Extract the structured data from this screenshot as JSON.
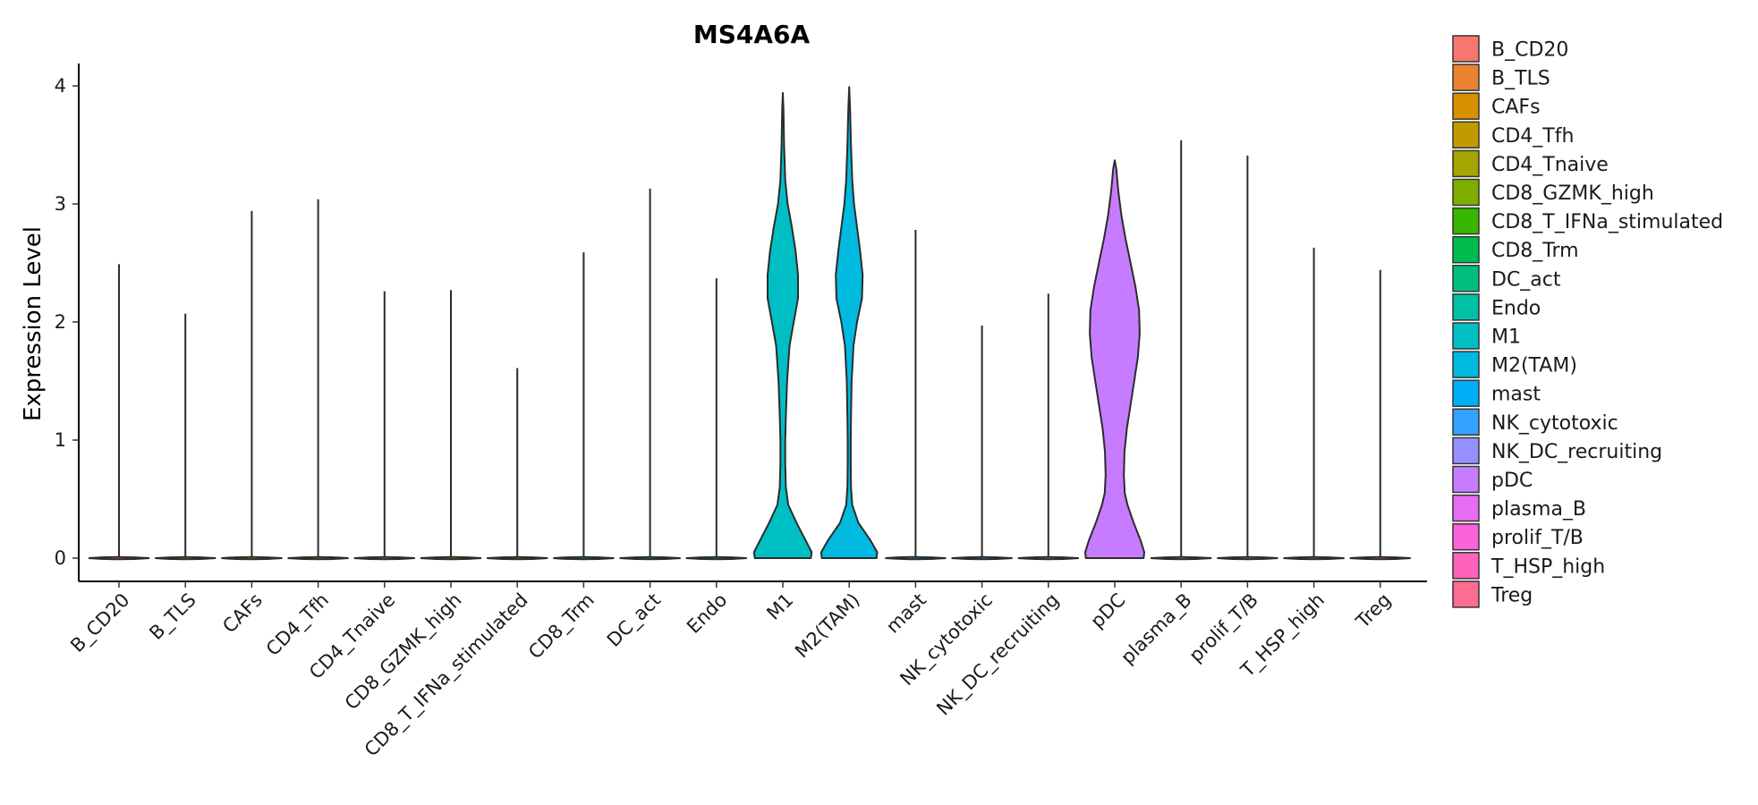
{
  "chart_data": {
    "type": "violin",
    "title": "MS4A6A",
    "xlabel": "",
    "ylabel": "Expression Level",
    "ylim": [
      -0.2,
      4.2
    ],
    "yticks": [
      0,
      1,
      2,
      3,
      4
    ],
    "grid": false,
    "legend_position": "right",
    "categories": [
      "B_CD20",
      "B_TLS",
      "CAFs",
      "CD4_Tfh",
      "CD4_Tnaive",
      "CD8_GZMK_high",
      "CD8_T_IFNa_stimulated",
      "CD8_Trm",
      "DC_act",
      "Endo",
      "M1",
      "M2(TAM)",
      "mast",
      "NK_cytotoxic",
      "NK_DC_recruiting",
      "pDC",
      "plasma_B",
      "prolif_T/B",
      "T_HSP_high",
      "Treg"
    ],
    "colors": [
      "#F8766D",
      "#EA8331",
      "#D89000",
      "#C09B00",
      "#A3A500",
      "#7CAE00",
      "#39B600",
      "#00BB4E",
      "#00BF7D",
      "#00C1A3",
      "#00BFC4",
      "#00BAE0",
      "#00B0F6",
      "#35A2FF",
      "#9590FF",
      "#C77CFF",
      "#E76BF3",
      "#FA62DB",
      "#FF62BC",
      "#FF6C91"
    ],
    "max_values": [
      2.49,
      2.07,
      2.94,
      3.04,
      2.26,
      2.27,
      1.61,
      2.59,
      3.13,
      2.37,
      3.94,
      3.99,
      2.78,
      1.97,
      2.24,
      3.37,
      3.54,
      3.41,
      2.63,
      2.44
    ],
    "violins": [
      {
        "category": "M1",
        "density": [
          [
            0.0,
            0.92
          ],
          [
            0.05,
            0.95
          ],
          [
            0.15,
            0.75
          ],
          [
            0.3,
            0.45
          ],
          [
            0.45,
            0.18
          ],
          [
            0.6,
            0.1
          ],
          [
            0.8,
            0.08
          ],
          [
            1.0,
            0.08
          ],
          [
            1.2,
            0.1
          ],
          [
            1.5,
            0.14
          ],
          [
            1.8,
            0.22
          ],
          [
            2.0,
            0.36
          ],
          [
            2.2,
            0.5
          ],
          [
            2.4,
            0.5
          ],
          [
            2.6,
            0.42
          ],
          [
            2.8,
            0.3
          ],
          [
            3.0,
            0.16
          ],
          [
            3.2,
            0.08
          ],
          [
            3.5,
            0.04
          ],
          [
            3.8,
            0.02
          ],
          [
            3.94,
            0.0
          ]
        ]
      },
      {
        "category": "M2(TAM)",
        "density": [
          [
            0.0,
            0.9
          ],
          [
            0.05,
            0.92
          ],
          [
            0.15,
            0.7
          ],
          [
            0.3,
            0.3
          ],
          [
            0.45,
            0.1
          ],
          [
            0.6,
            0.06
          ],
          [
            0.8,
            0.05
          ],
          [
            1.0,
            0.05
          ],
          [
            1.2,
            0.06
          ],
          [
            1.5,
            0.08
          ],
          [
            1.8,
            0.14
          ],
          [
            2.0,
            0.26
          ],
          [
            2.2,
            0.42
          ],
          [
            2.4,
            0.44
          ],
          [
            2.6,
            0.36
          ],
          [
            2.8,
            0.26
          ],
          [
            3.0,
            0.16
          ],
          [
            3.2,
            0.1
          ],
          [
            3.5,
            0.06
          ],
          [
            3.8,
            0.03
          ],
          [
            3.99,
            0.0
          ]
        ]
      },
      {
        "category": "pDC",
        "density": [
          [
            0.0,
            0.95
          ],
          [
            0.05,
            0.97
          ],
          [
            0.15,
            0.85
          ],
          [
            0.3,
            0.62
          ],
          [
            0.45,
            0.42
          ],
          [
            0.55,
            0.33
          ],
          [
            0.7,
            0.3
          ],
          [
            0.9,
            0.32
          ],
          [
            1.1,
            0.4
          ],
          [
            1.3,
            0.52
          ],
          [
            1.5,
            0.64
          ],
          [
            1.7,
            0.76
          ],
          [
            1.9,
            0.82
          ],
          [
            2.1,
            0.8
          ],
          [
            2.3,
            0.68
          ],
          [
            2.5,
            0.52
          ],
          [
            2.7,
            0.36
          ],
          [
            2.9,
            0.22
          ],
          [
            3.1,
            0.12
          ],
          [
            3.3,
            0.05
          ],
          [
            3.37,
            0.0
          ]
        ]
      }
    ]
  }
}
